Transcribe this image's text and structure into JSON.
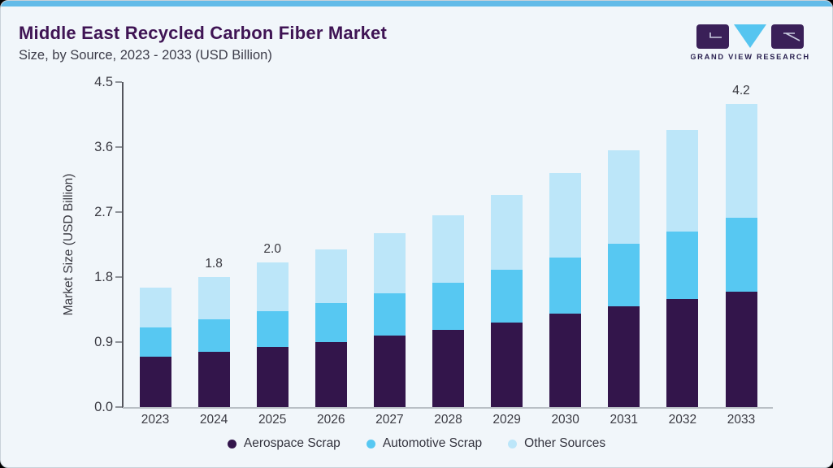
{
  "header": {
    "title": "Middle East Recycled Carbon Fiber Market",
    "subtitle": "Size, by Source, 2023 - 2033 (USD Billion)"
  },
  "logo": {
    "brand_text": "GRAND VIEW RESEARCH",
    "mark_dark_color": "#3A2058",
    "mark_triangle_color": "#56C5F0",
    "text_color": "#2A2150"
  },
  "colors": {
    "background": "#F1F6FA",
    "accent_strip": "#63BBE8",
    "title_text": "#3F1454",
    "axis_text": "#3A3A42",
    "aerospace_scrap": "#33154B",
    "automotive_scrap": "#57C8F2",
    "other_sources": "#BCE6F9"
  },
  "chart_data": {
    "type": "bar",
    "stacked": true,
    "title": "Middle East Recycled Carbon Fiber Market Size, by Source, 2023 - 2033 (USD Billion)",
    "xlabel": "",
    "ylabel": "Market Size (USD Billion)",
    "categories": [
      "2023",
      "2024",
      "2025",
      "2026",
      "2027",
      "2028",
      "2029",
      "2030",
      "2031",
      "2032",
      "2033"
    ],
    "series": [
      {
        "name": "Aerospace Scrap",
        "color": "#33154B",
        "values": [
          0.7,
          0.76,
          0.83,
          0.9,
          0.99,
          1.07,
          1.17,
          1.29,
          1.39,
          1.5,
          1.6
        ]
      },
      {
        "name": "Automotive Scrap",
        "color": "#57C8F2",
        "values": [
          0.4,
          0.45,
          0.5,
          0.54,
          0.59,
          0.65,
          0.73,
          0.78,
          0.87,
          0.93,
          1.02
        ]
      },
      {
        "name": "Other Sources",
        "color": "#BCE6F9",
        "values": [
          0.55,
          0.59,
          0.67,
          0.74,
          0.83,
          0.93,
          1.04,
          1.17,
          1.29,
          1.41,
          1.58
        ]
      }
    ],
    "totals": [
      1.65,
      1.8,
      2.0,
      2.18,
      2.41,
      2.65,
      2.94,
      3.24,
      3.55,
      3.84,
      4.2
    ],
    "total_labels_shown": {
      "2024": "1.8",
      "2025": "2.0",
      "2033": "4.2"
    },
    "yticks": [
      "0.0",
      "0.9",
      "1.8",
      "2.7",
      "3.6",
      "4.5"
    ],
    "ylim": [
      0,
      4.5
    ],
    "grid": false,
    "legend_position": "bottom"
  },
  "legend": {
    "items": [
      {
        "label": "Aerospace Scrap",
        "color": "#33154B"
      },
      {
        "label": "Automotive Scrap",
        "color": "#57C8F2"
      },
      {
        "label": "Other Sources",
        "color": "#BCE6F9"
      }
    ]
  }
}
